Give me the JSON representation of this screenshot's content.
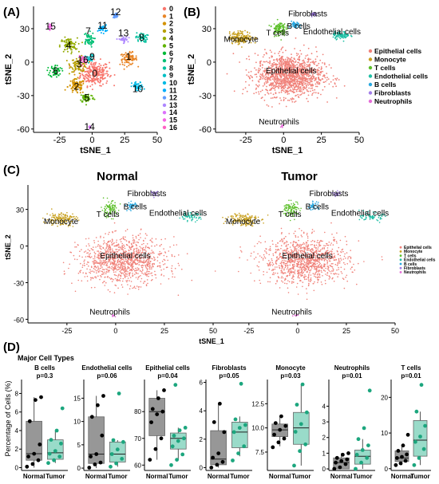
{
  "colors": {
    "epithelial": "#F0827A",
    "monocyte": "#C8A020",
    "tcells": "#5CBF2A",
    "endothelial": "#1FBFA5",
    "bcells": "#2AA8E0",
    "fibroblasts": "#A27EE8",
    "neutrophils": "#E46DD8",
    "normal_box": "#8C8C8C",
    "tumor_box": "#8FD8C4",
    "normal_dot": "#000000",
    "tumor_dot": "#1CA67E"
  },
  "panels": {
    "a": {
      "label": "(A)",
      "xlabel": "tSNE_1",
      "ylabel": "tSNE_2",
      "legend": [
        "0",
        "1",
        "2",
        "3",
        "4",
        "5",
        "6",
        "7",
        "8",
        "9",
        "10",
        "11",
        "12",
        "13",
        "14",
        "15",
        "16"
      ],
      "cluster_colors": [
        "#F8766D",
        "#E88526",
        "#D39200",
        "#B79F00",
        "#93AA00",
        "#5EB300",
        "#00BA38",
        "#00BF74",
        "#00C19F",
        "#00BFC4",
        "#00B9E3",
        "#00ADFA",
        "#619CFF",
        "#AE87FF",
        "#DB72FB",
        "#F564E3",
        "#FF61C3"
      ],
      "clusters": [
        {
          "id": "0",
          "x": 2,
          "y": -10,
          "sx": 10,
          "sy": 10,
          "n": 260
        },
        {
          "id": "1",
          "x": 28,
          "y": 3,
          "sx": 6,
          "sy": 5,
          "n": 90
        },
        {
          "id": "2",
          "x": -12,
          "y": -22,
          "sx": 6,
          "sy": 6,
          "n": 90
        },
        {
          "id": "3",
          "x": -10,
          "y": -2,
          "sx": 6,
          "sy": 6,
          "n": 90
        },
        {
          "id": "4",
          "x": -18,
          "y": 15,
          "sx": 6,
          "sy": 6,
          "n": 80
        },
        {
          "id": "5",
          "x": -4,
          "y": -32,
          "sx": 5,
          "sy": 4,
          "n": 60
        },
        {
          "id": "6",
          "x": -28,
          "y": -8,
          "sx": 4,
          "sy": 5,
          "n": 55
        },
        {
          "id": "7",
          "x": -3,
          "y": 20,
          "sx": 4,
          "sy": 6,
          "n": 55
        },
        {
          "id": "8",
          "x": 38,
          "y": 22,
          "sx": 4,
          "sy": 4,
          "n": 45
        },
        {
          "id": "9",
          "x": -2,
          "y": 3,
          "sx": 3,
          "sy": 3,
          "n": 30
        },
        {
          "id": "10",
          "x": 35,
          "y": -22,
          "sx": 4,
          "sy": 4,
          "n": 45
        },
        {
          "id": "11",
          "x": 8,
          "y": 30,
          "sx": 3,
          "sy": 3,
          "n": 35
        },
        {
          "id": "12",
          "x": 18,
          "y": 42,
          "sx": 2,
          "sy": 2,
          "n": 22
        },
        {
          "id": "13",
          "x": 24,
          "y": 20,
          "sx": 3,
          "sy": 3,
          "n": 30
        },
        {
          "id": "14",
          "x": -2,
          "y": -58,
          "sx": 1.2,
          "sy": 1.2,
          "n": 10
        },
        {
          "id": "15",
          "x": -32,
          "y": 32,
          "sx": 2,
          "sy": 2,
          "n": 12
        },
        {
          "id": "16",
          "x": -7,
          "y": 2,
          "sx": 3,
          "sy": 3,
          "n": 30
        }
      ],
      "cluster_labels": [
        {
          "id": "0",
          "x": 2,
          "y": -10
        },
        {
          "id": "1",
          "x": 28,
          "y": 5
        },
        {
          "id": "2",
          "x": -12,
          "y": -22
        },
        {
          "id": "3",
          "x": -10,
          "y": -2
        },
        {
          "id": "4",
          "x": -18,
          "y": 15
        },
        {
          "id": "5",
          "x": -4,
          "y": -32
        },
        {
          "id": "6",
          "x": -28,
          "y": -8
        },
        {
          "id": "7",
          "x": -3,
          "y": 28
        },
        {
          "id": "8",
          "x": 38,
          "y": 22
        },
        {
          "id": "9",
          "x": 0,
          "y": 5
        },
        {
          "id": "10",
          "x": 35,
          "y": -24
        },
        {
          "id": "11",
          "x": 8,
          "y": 33
        },
        {
          "id": "12",
          "x": 18,
          "y": 45
        },
        {
          "id": "13",
          "x": 24,
          "y": 26
        },
        {
          "id": "14",
          "x": -2,
          "y": -58
        },
        {
          "id": "15",
          "x": -32,
          "y": 32
        },
        {
          "id": "16",
          "x": -7,
          "y": 2
        }
      ],
      "xticks": [
        "-25",
        "0",
        "25",
        "50"
      ],
      "yticks": [
        "30",
        "0",
        "-30",
        "-60"
      ]
    },
    "b": {
      "label": "(B)",
      "xlabel": "tSNE_1",
      "ylabel": "tSNE_2",
      "legend": [
        "Epithelial cells",
        "Monocyte",
        "T cells",
        "Endothelial cells",
        "B cells",
        "Fibroblasts",
        "Neutrophils"
      ],
      "xticks": [
        "-25",
        "0",
        "25",
        "50"
      ],
      "yticks": [
        "30",
        "0",
        "-30",
        "-60"
      ]
    },
    "c": {
      "label": "(C)",
      "title_left": "Normal",
      "title_right": "Tumor",
      "xlabel": "tSNE_1",
      "ylabel": "tSNE_2",
      "xticks": [
        "-25",
        "0",
        "25",
        "50"
      ],
      "yticks": [
        "30",
        "0",
        "-30",
        "-60"
      ],
      "legend": [
        "Epithelial cells",
        "Monocyte",
        "T cells",
        "Endothelial cells",
        "B cells",
        "Fibroblasts",
        "Neutrophils"
      ]
    },
    "d": {
      "label": "(D)",
      "title": "Major Cell Types",
      "ylabel": "Percentage of Cells (%)"
    }
  },
  "cell_types": [
    {
      "name": "Epithelial cells",
      "key": "epithelial",
      "x": 4,
      "y": -12,
      "sx": 20,
      "sy": 17,
      "n": 1300,
      "lab_x": 5,
      "lab_y": -10
    },
    {
      "name": "Monocyte",
      "key": "monocyte",
      "x": -28,
      "y": 22,
      "sx": 7,
      "sy": 5,
      "n": 180,
      "lab_x": -28,
      "y2": 18,
      "lab_y": 18
    },
    {
      "name": "T cells",
      "key": "tcells",
      "x": -3,
      "y": 30,
      "sx": 4,
      "sy": 6,
      "n": 110,
      "lab_x": -4,
      "lab_y": 24
    },
    {
      "name": "Endothelial cells",
      "key": "endothelial",
      "x": 38,
      "y": 24,
      "sx": 5,
      "sy": 3,
      "n": 80,
      "lab_x": 32,
      "lab_y": 25
    },
    {
      "name": "B cells",
      "key": "bcells",
      "x": 8,
      "y": 33,
      "sx": 2.5,
      "sy": 3,
      "n": 45,
      "lab_x": 10,
      "lab_y": 30
    },
    {
      "name": "Fibroblasts",
      "key": "fibroblasts",
      "x": 20,
      "y": 43,
      "sx": 1.8,
      "sy": 1.8,
      "n": 25,
      "lab_x": 16,
      "lab_y": 41
    },
    {
      "name": "Neutrophils",
      "key": "neutrophils",
      "x": -1,
      "y": -57,
      "sx": 1.2,
      "sy": 1,
      "n": 8,
      "lab_x": -3,
      "lab_y": -56
    }
  ],
  "chart_data": [
    {
      "type": "scatter",
      "panel": "A",
      "xlabel": "tSNE_1",
      "ylabel": "tSNE_2",
      "xlim": [
        -45,
        50
      ],
      "ylim": [
        -63,
        50
      ],
      "legend": [
        "0",
        "1",
        "2",
        "3",
        "4",
        "5",
        "6",
        "7",
        "8",
        "9",
        "10",
        "11",
        "12",
        "13",
        "14",
        "15",
        "16"
      ]
    },
    {
      "type": "scatter",
      "panel": "B",
      "xlabel": "tSNE_1",
      "ylabel": "tSNE_2",
      "xlim": [
        -45,
        50
      ],
      "ylim": [
        -63,
        50
      ],
      "legend": [
        "Epithelial cells",
        "Monocyte",
        "T cells",
        "Endothelial cells",
        "B cells",
        "Fibroblasts",
        "Neutrophils"
      ]
    },
    {
      "type": "scatter",
      "panel": "C",
      "facets": [
        "Normal",
        "Tumor"
      ],
      "xlabel": "tSNE_1",
      "ylabel": "tSNE_2",
      "xlim": [
        -45,
        50
      ],
      "ylim": [
        -63,
        50
      ]
    },
    {
      "type": "box",
      "panel": "D",
      "title": "Major Cell Types",
      "ylabel": "Percentage of Cells (%)",
      "groups": [
        "Normal",
        "Tumor"
      ],
      "facets": [
        {
          "name": "B cells",
          "p": "p=0.3",
          "ylim": [
            -0.3,
            9.5
          ],
          "yticks": [
            0,
            2,
            4,
            6,
            8
          ],
          "normal": {
            "q1": 0.8,
            "median": 1.5,
            "q3": 5.0,
            "wlo": 0.0,
            "whi": 7.6,
            "points": [
              0.1,
              0.4,
              0.8,
              1.2,
              1.5,
              2.5,
              5.0,
              7.3,
              7.6
            ]
          },
          "tumor": {
            "q1": 0.9,
            "median": 1.6,
            "q3": 3.0,
            "wlo": 0.5,
            "whi": 4.0,
            "points": [
              0.5,
              0.8,
              1.2,
              1.5,
              1.8,
              2.6,
              3.0,
              4.0,
              6.4
            ]
          }
        },
        {
          "name": "Endothelial cells",
          "p": "p=0.06",
          "ylim": [
            -0.5,
            19
          ],
          "yticks": [
            0,
            5,
            10,
            15
          ],
          "normal": {
            "q1": 1.0,
            "median": 3.0,
            "q3": 11.0,
            "wlo": 0.0,
            "whi": 15.5,
            "points": [
              0.1,
              0.8,
              1.2,
              2.5,
              3.0,
              7.0,
              11.0,
              13.5,
              15.5
            ]
          },
          "tumor": {
            "q1": 1.3,
            "median": 3.0,
            "q3": 5.6,
            "wlo": 0.3,
            "whi": 6.0,
            "points": [
              0.3,
              1.0,
              2.0,
              3.0,
              4.0,
              5.6,
              6.0,
              16.0
            ]
          }
        },
        {
          "name": "Epithelial cells",
          "p": "p=0.04",
          "ylim": [
            58,
            92
          ],
          "yticks": [
            60,
            70,
            80
          ],
          "normal": {
            "q1": 71,
            "median": 80,
            "q3": 85,
            "wlo": 62,
            "whi": 88,
            "points": [
              62,
              66,
              70,
              76,
              79,
              80,
              81,
              85,
              88
            ]
          },
          "tumor": {
            "q1": 66,
            "median": 70,
            "q3": 72,
            "wlo": 62,
            "whi": 74,
            "points": [
              60,
              62,
              64,
              67,
              69,
              70,
              71,
              73,
              74,
              90
            ]
          }
        },
        {
          "name": "Fibroblasts",
          "p": "p=0.05",
          "ylim": [
            -0.2,
            6.2
          ],
          "yticks": [
            0,
            2,
            4,
            6
          ],
          "normal": {
            "q1": 0.2,
            "median": 0.6,
            "q3": 2.6,
            "wlo": 0.0,
            "whi": 4.5,
            "points": [
              0.0,
              0.2,
              0.4,
              0.7,
              1.0,
              2.5,
              3.2,
              4.5
            ]
          },
          "tumor": {
            "q1": 1.4,
            "median": 2.5,
            "q3": 3.2,
            "wlo": 0.8,
            "whi": 3.6,
            "points": [
              0.5,
              1.0,
              1.5,
              2.5,
              2.8,
              3.0,
              3.4,
              5.9
            ]
          }
        },
        {
          "name": "Monocyte",
          "p": "p=0.03",
          "ylim": [
            5.6,
            15
          ],
          "yticks": [
            7.5,
            10.0,
            12.5
          ],
          "normal": {
            "q1": 9.1,
            "median": 9.8,
            "q3": 10.4,
            "wlo": 8.1,
            "whi": 11.2,
            "points": [
              8.0,
              8.5,
              8.9,
              9.3,
              9.8,
              10.2,
              10.5,
              11.2
            ]
          },
          "tumor": {
            "q1": 8.3,
            "median": 10.0,
            "q3": 11.6,
            "wlo": 6.1,
            "whi": 14.5,
            "points": [
              6.1,
              7.6,
              8.3,
              9.6,
              10.4,
              11.6,
              12.4,
              14.5
            ]
          }
        },
        {
          "name": "Neutrophils",
          "p": "p=0.01",
          "ylim": [
            -0.1,
            5.7
          ],
          "yticks": [
            0,
            1,
            2,
            3,
            4
          ],
          "normal": {
            "q1": 0.0,
            "median": 0.4,
            "q3": 0.7,
            "wlo": 0.0,
            "whi": 1.0,
            "points": [
              0.0,
              0.1,
              0.3,
              0.4,
              0.5,
              0.6,
              0.7,
              0.9,
              1.0
            ]
          },
          "tumor": {
            "q1": 0.3,
            "median": 0.8,
            "q3": 1.2,
            "wlo": 0.0,
            "whi": 1.9,
            "points": [
              0.0,
              0.4,
              0.7,
              0.9,
              1.2,
              1.5,
              1.9,
              2.6,
              5.0
            ]
          }
        },
        {
          "name": "T cells",
          "p": "p=0.01",
          "ylim": [
            -0.5,
            25
          ],
          "yticks": [
            0,
            10,
            20
          ],
          "normal": {
            "q1": 2.0,
            "median": 3.0,
            "q3": 5.0,
            "wlo": 1.0,
            "whi": 6.5,
            "points": [
              1.0,
              1.5,
              2.2,
              3.0,
              3.3,
              4.0,
              5.0,
              6.5,
              9.5
            ]
          },
          "tumor": {
            "q1": 3.5,
            "median": 8.0,
            "q3": 13.5,
            "wlo": 1.0,
            "whi": 16.0,
            "points": [
              1.0,
              3.0,
              5.5,
              7.5,
              9.0,
              12.0,
              16.0,
              23.5
            ]
          }
        }
      ]
    }
  ]
}
